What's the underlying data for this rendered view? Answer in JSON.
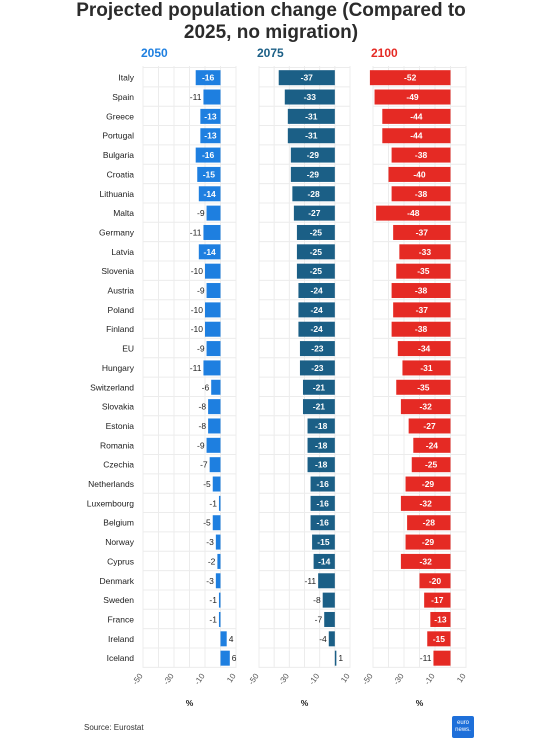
{
  "chart_data": {
    "type": "bar",
    "title": "Projected population change (Compared to 2025, no migration)",
    "xlabel": "%",
    "categories": [
      "Italy",
      "Spain",
      "Greece",
      "Portugal",
      "Bulgaria",
      "Croatia",
      "Lithuania",
      "Malta",
      "Germany",
      "Latvia",
      "Slovenia",
      "Austria",
      "Poland",
      "Finland",
      "EU",
      "Hungary",
      "Switzerland",
      "Slovakia",
      "Estonia",
      "Romania",
      "Czechia",
      "Netherlands",
      "Luxembourg",
      "Belgium",
      "Norway",
      "Cyprus",
      "Denmark",
      "Sweden",
      "France",
      "Ireland",
      "Iceland"
    ],
    "series": [
      {
        "name": "2050",
        "color": "#1e7fe0",
        "values": [
          -16,
          -11,
          -13,
          -13,
          -16,
          -15,
          -14,
          -9,
          -11,
          -14,
          -10,
          -9,
          -10,
          -10,
          -9,
          -11,
          -6,
          -8,
          -8,
          -9,
          -7,
          -5,
          -1,
          -5,
          -3,
          -2,
          -3,
          -1,
          -1,
          4,
          6
        ]
      },
      {
        "name": "2075",
        "color": "#1b5f86",
        "values": [
          -37,
          -33,
          -31,
          -31,
          -29,
          -29,
          -28,
          -27,
          -25,
          -25,
          -25,
          -24,
          -24,
          -24,
          -23,
          -23,
          -21,
          -21,
          -18,
          -18,
          -18,
          -16,
          -16,
          -16,
          -15,
          -14,
          -11,
          -8,
          -7,
          -4,
          1
        ]
      },
      {
        "name": "2100",
        "color": "#e52a24",
        "values": [
          -52,
          -49,
          -44,
          -44,
          -38,
          -40,
          -38,
          -48,
          -37,
          -33,
          -35,
          -38,
          -37,
          -38,
          -34,
          -31,
          -35,
          -32,
          -27,
          -24,
          -25,
          -29,
          -32,
          -28,
          -29,
          -32,
          -20,
          -17,
          -13,
          -15,
          -11
        ]
      }
    ],
    "xlim": [
      -50,
      10
    ],
    "xticks": [
      -50,
      -30,
      -10,
      10
    ],
    "grid": true,
    "legend": "top"
  },
  "source": "Source: Eurostat",
  "logo_text": "euro news."
}
